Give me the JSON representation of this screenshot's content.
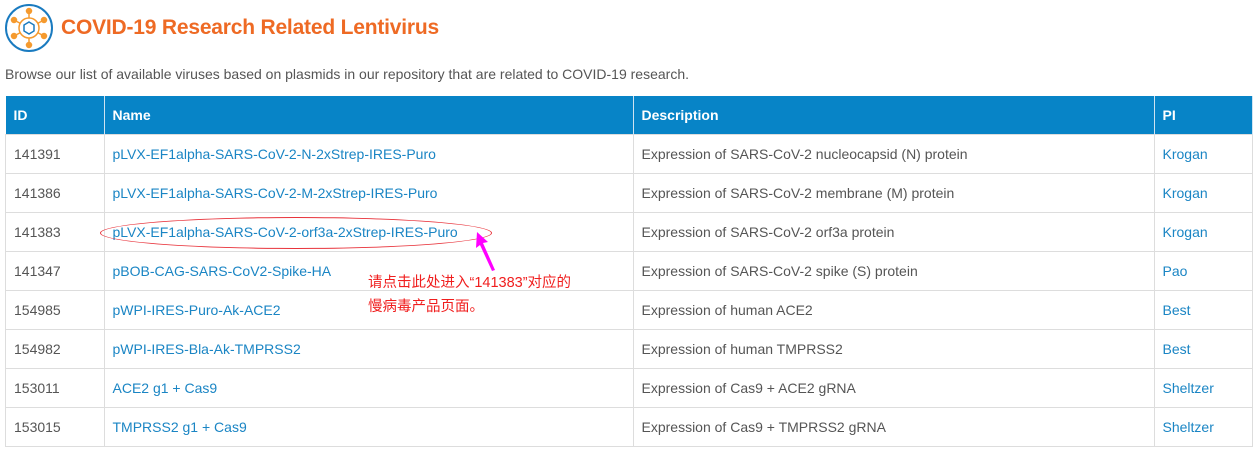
{
  "title": "COVID-19 Research Related Lentivirus",
  "intro": "Browse our list of available viruses based on plasmids in our repository that are related to COVID-19 research.",
  "colors": {
    "title": "#ee6a24",
    "header": "#0784c7",
    "link": "#1a85c4",
    "annotation": "#f01e1e",
    "arrow": "#ff00ff"
  },
  "table": {
    "headers": [
      "ID",
      "Name",
      "Description",
      "PI"
    ],
    "rows": [
      {
        "id": "141391",
        "name": "pLVX-EF1alpha-SARS-CoV-2-N-2xStrep-IRES-Puro",
        "description": "Expression of SARS-CoV-2 nucleocapsid (N) protein",
        "pi": "Krogan"
      },
      {
        "id": "141386",
        "name": "pLVX-EF1alpha-SARS-CoV-2-M-2xStrep-IRES-Puro",
        "description": "Expression of SARS-CoV-2 membrane (M) protein",
        "pi": "Krogan"
      },
      {
        "id": "141383",
        "name": "pLVX-EF1alpha-SARS-CoV-2-orf3a-2xStrep-IRES-Puro",
        "description": "Expression of SARS-CoV-2 orf3a protein",
        "pi": "Krogan"
      },
      {
        "id": "141347",
        "name": "pBOB-CAG-SARS-CoV2-Spike-HA",
        "description": "Expression of SARS-CoV-2 spike (S) protein",
        "pi": "Pao"
      },
      {
        "id": "154985",
        "name": "pWPI-IRES-Puro-Ak-ACE2",
        "description": "Expression of human ACE2",
        "pi": "Best"
      },
      {
        "id": "154982",
        "name": "pWPI-IRES-Bla-Ak-TMPRSS2",
        "description": "Expression of human TMPRSS2",
        "pi": "Best"
      },
      {
        "id": "153011",
        "name": "ACE2 g1 + Cas9",
        "description": "Expression of Cas9 + ACE2 gRNA",
        "pi": "Sheltzer"
      },
      {
        "id": "153015",
        "name": "TMPRSS2 g1 + Cas9",
        "description": "Expression of Cas9 + TMPRSS2 gRNA",
        "pi": "Sheltzer"
      }
    ]
  },
  "annotation": {
    "line1": "请点击此处进入“141383”对应的",
    "line2": "慢病毒产品页面。"
  }
}
